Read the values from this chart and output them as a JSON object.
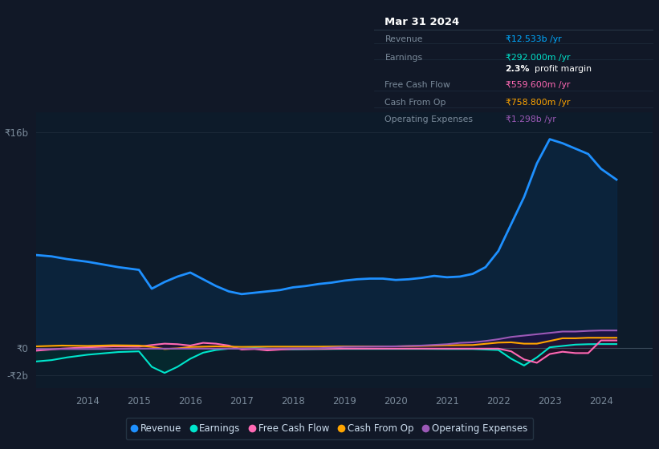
{
  "bg_color": "#111827",
  "plot_bg_color": "#0d1b2a",
  "grid_color": "#1e2d3d",
  "box_bg": "#0a0f18",
  "title_box": {
    "date": "Mar 31 2024",
    "rows": [
      {
        "label": "Revenue",
        "value": "₹12.533b /yr",
        "value_color": "#00aaff",
        "label_color": "#7a8a9a"
      },
      {
        "label": "Earnings",
        "value": "₹292.000m /yr",
        "value_color": "#00e5cc",
        "label_color": "#7a8a9a"
      },
      {
        "label": "",
        "value": "2.3% profit margin",
        "value_color": "#ffffff",
        "label_color": ""
      },
      {
        "label": "Free Cash Flow",
        "value": "₹559.600m /yr",
        "value_color": "#ff69b4",
        "label_color": "#7a8a9a"
      },
      {
        "label": "Cash From Op",
        "value": "₹758.800m /yr",
        "value_color": "#ffa500",
        "label_color": "#7a8a9a"
      },
      {
        "label": "Operating Expenses",
        "value": "₹1.298b /yr",
        "value_color": "#9b59b6",
        "label_color": "#7a8a9a"
      }
    ]
  },
  "ytick_labels": [
    "₹16b",
    "₹0",
    "-₹2b"
  ],
  "ytick_vals": [
    16,
    0,
    -2
  ],
  "ylim": [
    -3.0,
    17.5
  ],
  "xlim": [
    2013.0,
    2025.0
  ],
  "xticks": [
    2014,
    2015,
    2016,
    2017,
    2018,
    2019,
    2020,
    2021,
    2022,
    2023,
    2024
  ],
  "revenue_x": [
    2013.0,
    2013.3,
    2013.6,
    2014.0,
    2014.3,
    2014.6,
    2015.0,
    2015.25,
    2015.5,
    2015.75,
    2016.0,
    2016.25,
    2016.5,
    2016.75,
    2017.0,
    2017.25,
    2017.5,
    2017.75,
    2018.0,
    2018.25,
    2018.5,
    2018.75,
    2019.0,
    2019.25,
    2019.5,
    2019.75,
    2020.0,
    2020.25,
    2020.5,
    2020.75,
    2021.0,
    2021.25,
    2021.5,
    2021.75,
    2022.0,
    2022.25,
    2022.5,
    2022.75,
    2023.0,
    2023.25,
    2023.5,
    2023.75,
    2024.0,
    2024.3
  ],
  "revenue_y": [
    6.9,
    6.8,
    6.6,
    6.4,
    6.2,
    6.0,
    5.8,
    4.4,
    4.9,
    5.3,
    5.6,
    5.1,
    4.6,
    4.2,
    4.0,
    4.1,
    4.2,
    4.3,
    4.5,
    4.6,
    4.75,
    4.85,
    5.0,
    5.1,
    5.15,
    5.15,
    5.05,
    5.1,
    5.2,
    5.35,
    5.25,
    5.3,
    5.5,
    6.0,
    7.2,
    9.2,
    11.2,
    13.7,
    15.5,
    15.2,
    14.8,
    14.4,
    13.3,
    12.5
  ],
  "revenue_color": "#1e90ff",
  "revenue_fill": "#0a2a4a",
  "earnings_x": [
    2013.0,
    2013.3,
    2013.6,
    2014.0,
    2014.3,
    2014.6,
    2015.0,
    2015.25,
    2015.5,
    2015.75,
    2016.0,
    2016.25,
    2016.5,
    2016.75,
    2017.0,
    2017.25,
    2017.5,
    2017.75,
    2018.0,
    2018.5,
    2019.0,
    2019.5,
    2020.0,
    2020.5,
    2021.0,
    2021.5,
    2022.0,
    2022.25,
    2022.5,
    2022.75,
    2023.0,
    2023.25,
    2023.5,
    2023.75,
    2024.0,
    2024.3
  ],
  "earnings_y": [
    -1.0,
    -0.9,
    -0.7,
    -0.5,
    -0.4,
    -0.3,
    -0.25,
    -1.4,
    -1.85,
    -1.4,
    -0.8,
    -0.35,
    -0.15,
    -0.05,
    -0.05,
    0.0,
    -0.05,
    -0.08,
    -0.1,
    -0.08,
    -0.07,
    -0.07,
    -0.07,
    -0.07,
    -0.08,
    -0.08,
    -0.15,
    -0.8,
    -1.3,
    -0.7,
    0.05,
    0.15,
    0.25,
    0.28,
    0.29,
    0.29
  ],
  "earnings_color": "#00e5cc",
  "earnings_fill": "#003333",
  "fcf_x": [
    2013.0,
    2013.5,
    2014.0,
    2014.5,
    2015.0,
    2015.25,
    2015.5,
    2015.75,
    2016.0,
    2016.25,
    2016.5,
    2016.75,
    2017.0,
    2017.25,
    2017.5,
    2017.75,
    2018.0,
    2018.5,
    2019.0,
    2019.5,
    2020.0,
    2020.5,
    2021.0,
    2021.5,
    2022.0,
    2022.25,
    2022.5,
    2022.75,
    2023.0,
    2023.25,
    2023.5,
    2023.75,
    2024.0,
    2024.3
  ],
  "fcf_y": [
    -0.2,
    -0.05,
    0.05,
    0.12,
    0.1,
    0.22,
    0.32,
    0.28,
    0.18,
    0.38,
    0.32,
    0.18,
    -0.12,
    -0.08,
    -0.18,
    -0.12,
    -0.08,
    -0.07,
    -0.05,
    -0.05,
    -0.05,
    -0.05,
    -0.05,
    -0.05,
    -0.05,
    -0.25,
    -0.85,
    -1.1,
    -0.45,
    -0.28,
    -0.38,
    -0.38,
    0.56,
    0.56
  ],
  "fcf_color": "#ff69b4",
  "fcf_fill": "#3d0020",
  "cfo_x": [
    2013.0,
    2013.5,
    2014.0,
    2014.5,
    2015.0,
    2015.25,
    2015.5,
    2015.75,
    2016.0,
    2016.5,
    2017.0,
    2017.5,
    2018.0,
    2018.5,
    2019.0,
    2019.5,
    2020.0,
    2020.5,
    2021.0,
    2021.5,
    2022.0,
    2022.25,
    2022.5,
    2022.75,
    2023.0,
    2023.25,
    2023.5,
    2023.75,
    2024.0,
    2024.3
  ],
  "cfo_y": [
    0.12,
    0.18,
    0.15,
    0.2,
    0.18,
    0.08,
    -0.08,
    -0.03,
    0.07,
    0.12,
    0.08,
    0.1,
    0.1,
    0.1,
    0.12,
    0.12,
    0.12,
    0.15,
    0.2,
    0.22,
    0.4,
    0.42,
    0.32,
    0.32,
    0.52,
    0.72,
    0.72,
    0.76,
    0.76,
    0.76
  ],
  "cfo_color": "#ffa500",
  "cfo_fill": "#3d2000",
  "opex_x": [
    2013.0,
    2013.5,
    2014.0,
    2014.5,
    2015.0,
    2015.5,
    2016.0,
    2016.5,
    2017.0,
    2017.5,
    2018.0,
    2018.5,
    2019.0,
    2019.5,
    2020.0,
    2020.5,
    2021.0,
    2021.25,
    2021.5,
    2021.75,
    2022.0,
    2022.25,
    2022.5,
    2022.75,
    2023.0,
    2023.25,
    2023.5,
    2023.75,
    2024.0,
    2024.3
  ],
  "opex_y": [
    -0.08,
    -0.08,
    -0.08,
    -0.07,
    -0.05,
    -0.05,
    -0.05,
    -0.05,
    -0.05,
    -0.05,
    -0.03,
    -0.02,
    0.08,
    0.1,
    0.12,
    0.18,
    0.28,
    0.38,
    0.42,
    0.52,
    0.65,
    0.82,
    0.92,
    1.02,
    1.12,
    1.22,
    1.22,
    1.27,
    1.3,
    1.3
  ],
  "opex_color": "#9b59b6",
  "opex_fill": "#2d004d",
  "legend": [
    {
      "label": "Revenue",
      "color": "#1e90ff"
    },
    {
      "label": "Earnings",
      "color": "#00e5cc"
    },
    {
      "label": "Free Cash Flow",
      "color": "#ff69b4"
    },
    {
      "label": "Cash From Op",
      "color": "#ffa500"
    },
    {
      "label": "Operating Expenses",
      "color": "#9b59b6"
    }
  ]
}
